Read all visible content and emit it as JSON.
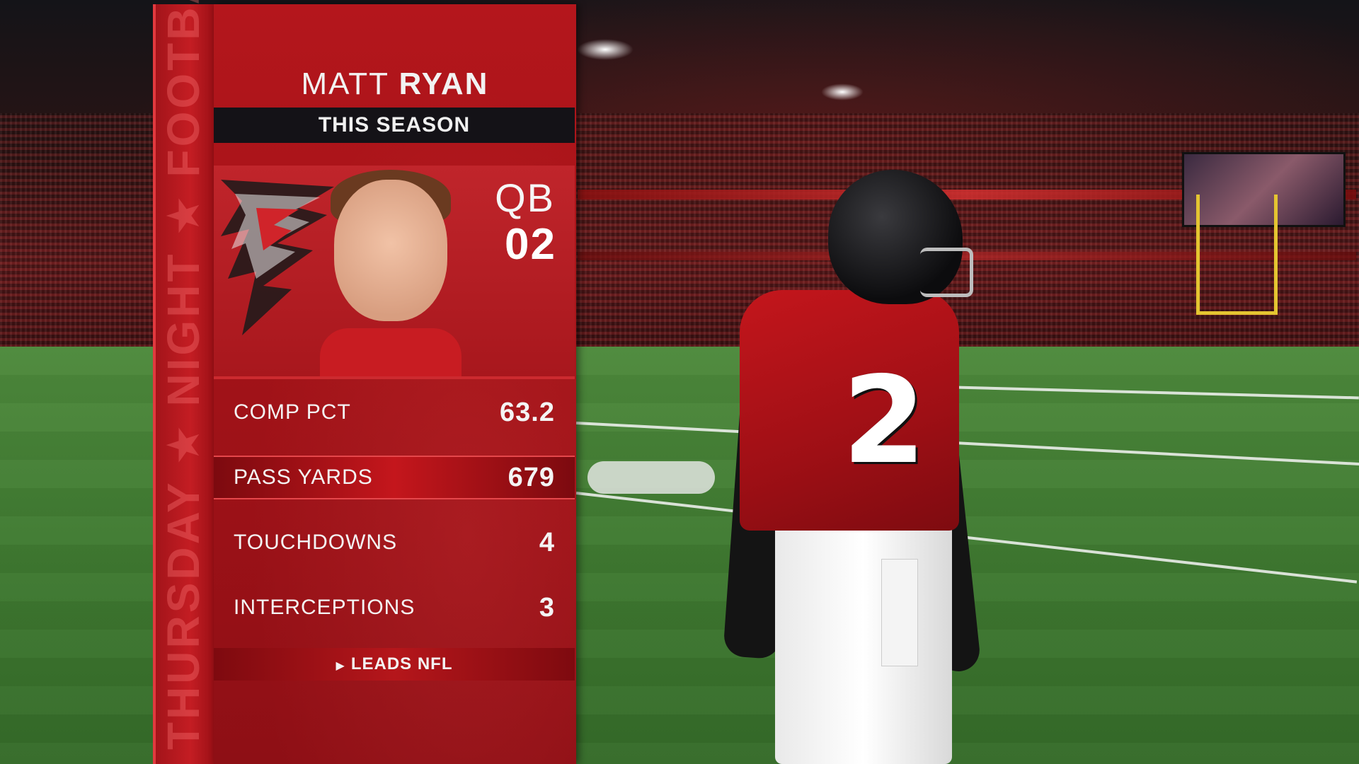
{
  "player": {
    "first_name": "MATT",
    "last_name": "RYAN",
    "position": "QB",
    "number": "02",
    "jersey_number": "2"
  },
  "graphic": {
    "timeframe": "THIS SEASON",
    "side_banner": "THURSDAY ★ NIGHT ★ FOOTBALL",
    "leads_label": "LEADS NFL",
    "accent_color": "#c41d23",
    "highlight_color": "#e5474b"
  },
  "stats": [
    {
      "label": "COMP PCT",
      "value": "63.2",
      "leads_nfl": false
    },
    {
      "label": "PASS YARDS",
      "value": "679",
      "leads_nfl": true
    },
    {
      "label": "TOUCHDOWNS",
      "value": "4",
      "leads_nfl": false
    },
    {
      "label": "INTERCEPTIONS",
      "value": "3",
      "leads_nfl": false
    }
  ],
  "icons": {
    "team_logo": "falcon-logo-icon",
    "leads_marker": "triangle-right-icon"
  }
}
